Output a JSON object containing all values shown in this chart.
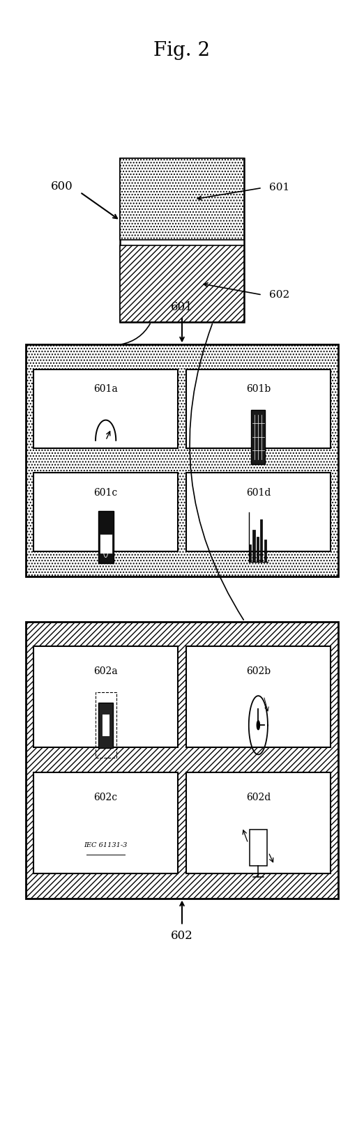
{
  "title": "Fig. 2",
  "bg_color": "#ffffff",
  "text_color": "#000000",
  "fig_width": 5.22,
  "fig_height": 16.21,
  "box601_cells": [
    "601a",
    "601b",
    "601c",
    "601d"
  ],
  "box602_cells": [
    "602a",
    "602b",
    "602c",
    "602d"
  ],
  "label_600": "600",
  "label_601": "601",
  "label_602": "602",
  "iec_text": "IEC 61131-3"
}
